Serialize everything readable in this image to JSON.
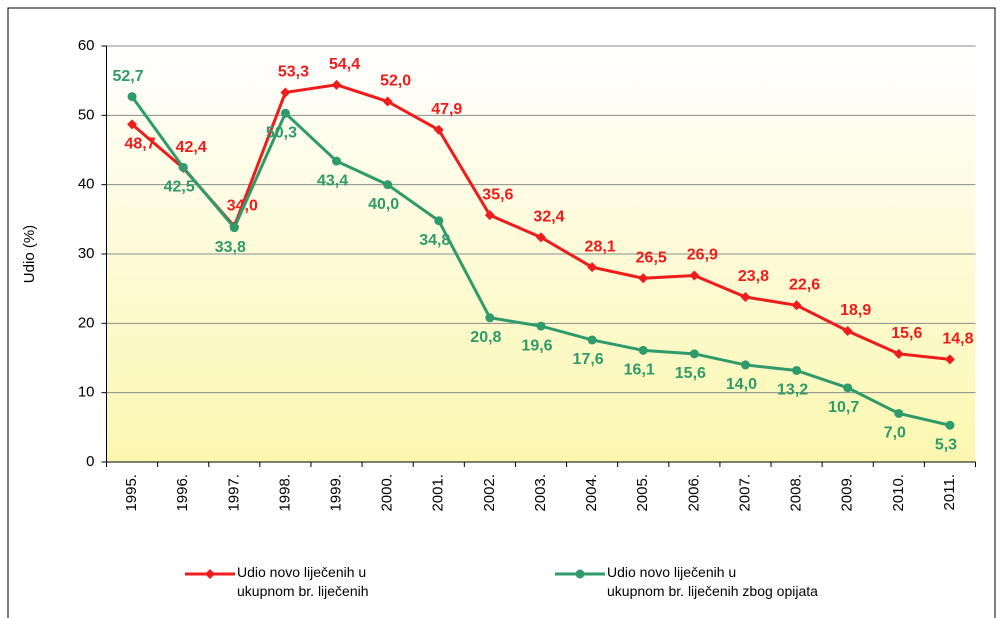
{
  "chart_data": {
    "type": "line",
    "y_label": "Udio (%)",
    "categories": [
      "1995.",
      "1996.",
      "1997.",
      "1998.",
      "1999.",
      "2000.",
      "2001.",
      "2002.",
      "2003.",
      "2004.",
      "2005.",
      "2006.",
      "2007.",
      "2008.",
      "2009.",
      "2010.",
      "2011."
    ],
    "series": [
      {
        "name": "Udio novo liječenih u\nukupnom br. liječenih",
        "color": "#ee1c1c",
        "marker": "diamond",
        "values": [
          48.7,
          42.4,
          34.0,
          53.3,
          54.4,
          52.0,
          47.9,
          35.6,
          32.4,
          28.1,
          26.5,
          26.9,
          23.8,
          22.6,
          18.9,
          15.6,
          14.8
        ],
        "value_labels": [
          "48,7",
          "42,4",
          "34,0",
          "53,3",
          "54,4",
          "52,0",
          "47,9",
          "35,6",
          "32,4",
          "28,1",
          "26,5",
          "26,9",
          "23,8",
          "22,6",
          "18,9",
          "15,6",
          "14,8"
        ]
      },
      {
        "name": "Udio novo liječenih u\nukupnom br. liječenih zbog opijata",
        "color": "#2f9a6a",
        "marker": "circle",
        "values": [
          52.7,
          42.5,
          33.8,
          50.3,
          43.4,
          40.0,
          34.8,
          20.8,
          19.6,
          17.6,
          16.1,
          15.6,
          14.0,
          13.2,
          10.7,
          7.0,
          5.3
        ],
        "value_labels": [
          "52,7",
          "42,5",
          "33,8",
          "50,3",
          "43,4",
          "40,0",
          "34,8",
          "20,8",
          "19,6",
          "17,6",
          "16,1",
          "15,6",
          "14,0",
          "13,2",
          "10,7",
          "7,0",
          "5,3"
        ]
      }
    ],
    "ylim": [
      0,
      60
    ],
    "yticks": [
      0,
      10,
      20,
      30,
      40,
      50,
      60
    ],
    "grid": true,
    "legend": "bottom"
  }
}
